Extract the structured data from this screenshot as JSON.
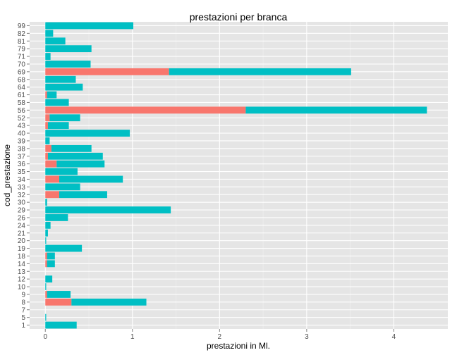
{
  "chart_data": {
    "type": "bar",
    "orientation": "horizontal",
    "stacked": true,
    "title": "prestazioni per branca",
    "xlabel": "prestazioni in Ml.",
    "ylabel": "cod_prestazione",
    "xlim": [
      -0.18,
      4.62
    ],
    "xticks": [
      0,
      1,
      2,
      3,
      4
    ],
    "grid": true,
    "legend": "none",
    "categories": [
      "1",
      "5",
      "7",
      "8",
      "9",
      "10",
      "12",
      "13",
      "14",
      "18",
      "19",
      "20",
      "21",
      "24",
      "26",
      "29",
      "30",
      "32",
      "33",
      "34",
      "35",
      "36",
      "37",
      "38",
      "39",
      "40",
      "43",
      "52",
      "56",
      "58",
      "61",
      "64",
      "68",
      "69",
      "70",
      "71",
      "79",
      "81",
      "82",
      "99"
    ],
    "series": [
      {
        "color": "#F8766D",
        "values": [
          0,
          0,
          0,
          0.3,
          0.02,
          0,
          0,
          0,
          0.02,
          0.02,
          0,
          0,
          0,
          0,
          0,
          0,
          0,
          0.16,
          0,
          0.16,
          0,
          0.13,
          0.03,
          0.07,
          0,
          0,
          0.03,
          0.05,
          2.3,
          0,
          0.02,
          0,
          0,
          1.42,
          0,
          0,
          0,
          0,
          0,
          0
        ]
      },
      {
        "color": "#00BFC4",
        "values": [
          0.36,
          0.01,
          0,
          0.86,
          0.27,
          0.01,
          0.08,
          0,
          0.09,
          0.09,
          0.42,
          0.01,
          0.03,
          0.06,
          0.26,
          1.44,
          0.02,
          0.55,
          0.4,
          0.73,
          0.37,
          0.55,
          0.63,
          0.46,
          0.05,
          0.97,
          0.24,
          0.35,
          2.08,
          0.27,
          0.11,
          0.43,
          0.35,
          2.09,
          0.52,
          0.06,
          0.53,
          0.23,
          0.09,
          1.01
        ]
      }
    ]
  },
  "colors": {
    "panel": "#E5E5E5",
    "grid_major": "#FFFFFF",
    "grid_minor": "#F2F2F2"
  }
}
